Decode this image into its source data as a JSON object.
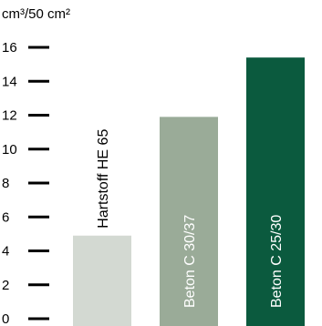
{
  "chart_data": {
    "type": "bar",
    "ylabel": "cm³/50 cm²",
    "ylim": [
      0,
      16
    ],
    "yticks": [
      0,
      2,
      4,
      6,
      8,
      10,
      12,
      14,
      16
    ],
    "grid": false,
    "categories": [
      "Hartstoff HE 65",
      "Beton C 30/37",
      "Beton C 25/30"
    ],
    "values": [
      4.9,
      11.9,
      15.4
    ],
    "colors": [
      "#d3d9d2",
      "#9aab98",
      "#0b5a3e"
    ],
    "label_colors": [
      "#000000",
      "#ffffff",
      "#ffffff"
    ],
    "label_position": [
      "above",
      "inside",
      "inside"
    ],
    "tick_color": "#000000"
  }
}
